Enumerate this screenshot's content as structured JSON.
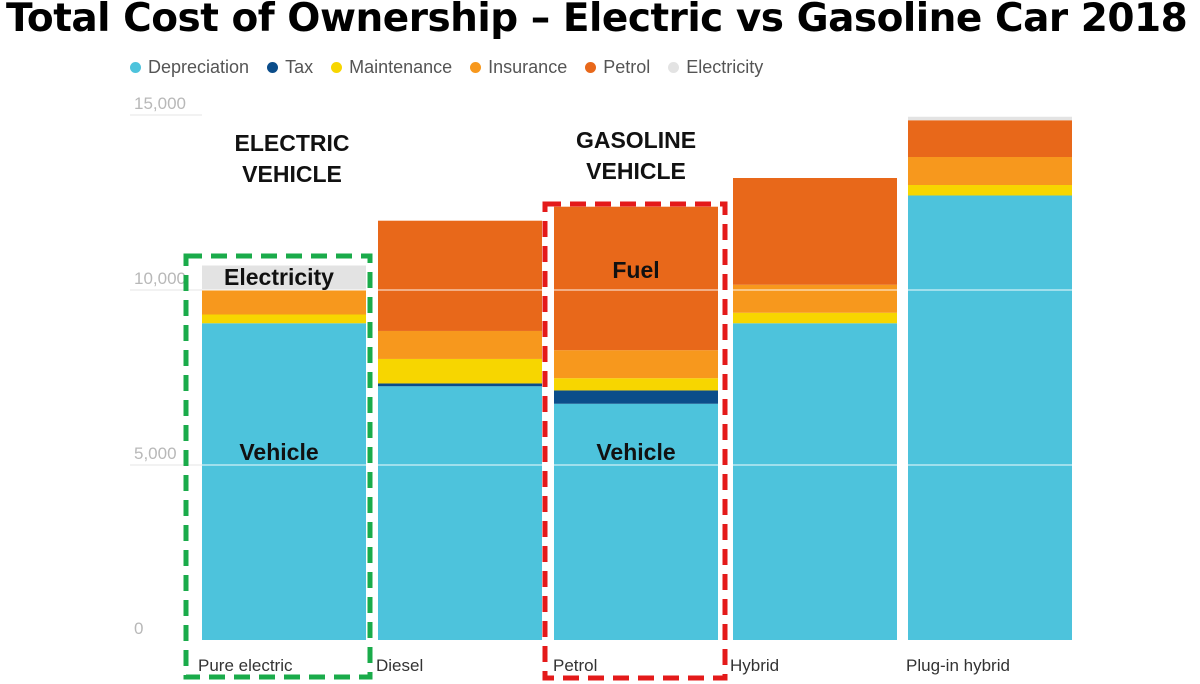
{
  "title": "Total Cost of Ownership – Electric vs Gasoline Car 2018",
  "chart_data": {
    "type": "bar",
    "stacked": true,
    "categories": [
      "Pure electric",
      "Diesel",
      "Petrol",
      "Hybrid",
      "Plug-in hybrid"
    ],
    "series": [
      {
        "name": "Depreciation",
        "color": "#4dc3dc",
        "values": [
          9050,
          7250,
          6750,
          9050,
          12700
        ]
      },
      {
        "name": "Tax",
        "color": "#0b4d8a",
        "values": [
          0,
          80,
          380,
          0,
          0
        ]
      },
      {
        "name": "Maintenance",
        "color": "#f7d600",
        "values": [
          250,
          700,
          350,
          300,
          300
        ]
      },
      {
        "name": "Insurance",
        "color": "#f7981d",
        "values": [
          700,
          800,
          800,
          800,
          800
        ]
      },
      {
        "name": "Petrol",
        "color": "#e8681a",
        "values": [
          0,
          3150,
          4100,
          3050,
          1050
        ]
      },
      {
        "name": "Electricity",
        "color": "#e3e3e3",
        "values": [
          700,
          0,
          0,
          0,
          100
        ]
      }
    ],
    "yticks": [
      0,
      5000,
      10000,
      15000
    ],
    "ytick_labels": [
      "0",
      "5,000",
      "10,000",
      "15,000"
    ],
    "ylim": [
      0,
      15200
    ],
    "legend_position": "top-left",
    "grid": true,
    "annotations": {
      "electric_vehicle": [
        "ELECTRIC",
        "VEHICLE"
      ],
      "gasoline_vehicle": [
        "GASOLINE",
        "VEHICLE"
      ],
      "electricity": "Electricity",
      "fuel": "Fuel",
      "vehicle": "Vehicle"
    },
    "highlight_colors": {
      "electric": "#1aab4a",
      "gasoline": "#e41a1a"
    }
  }
}
